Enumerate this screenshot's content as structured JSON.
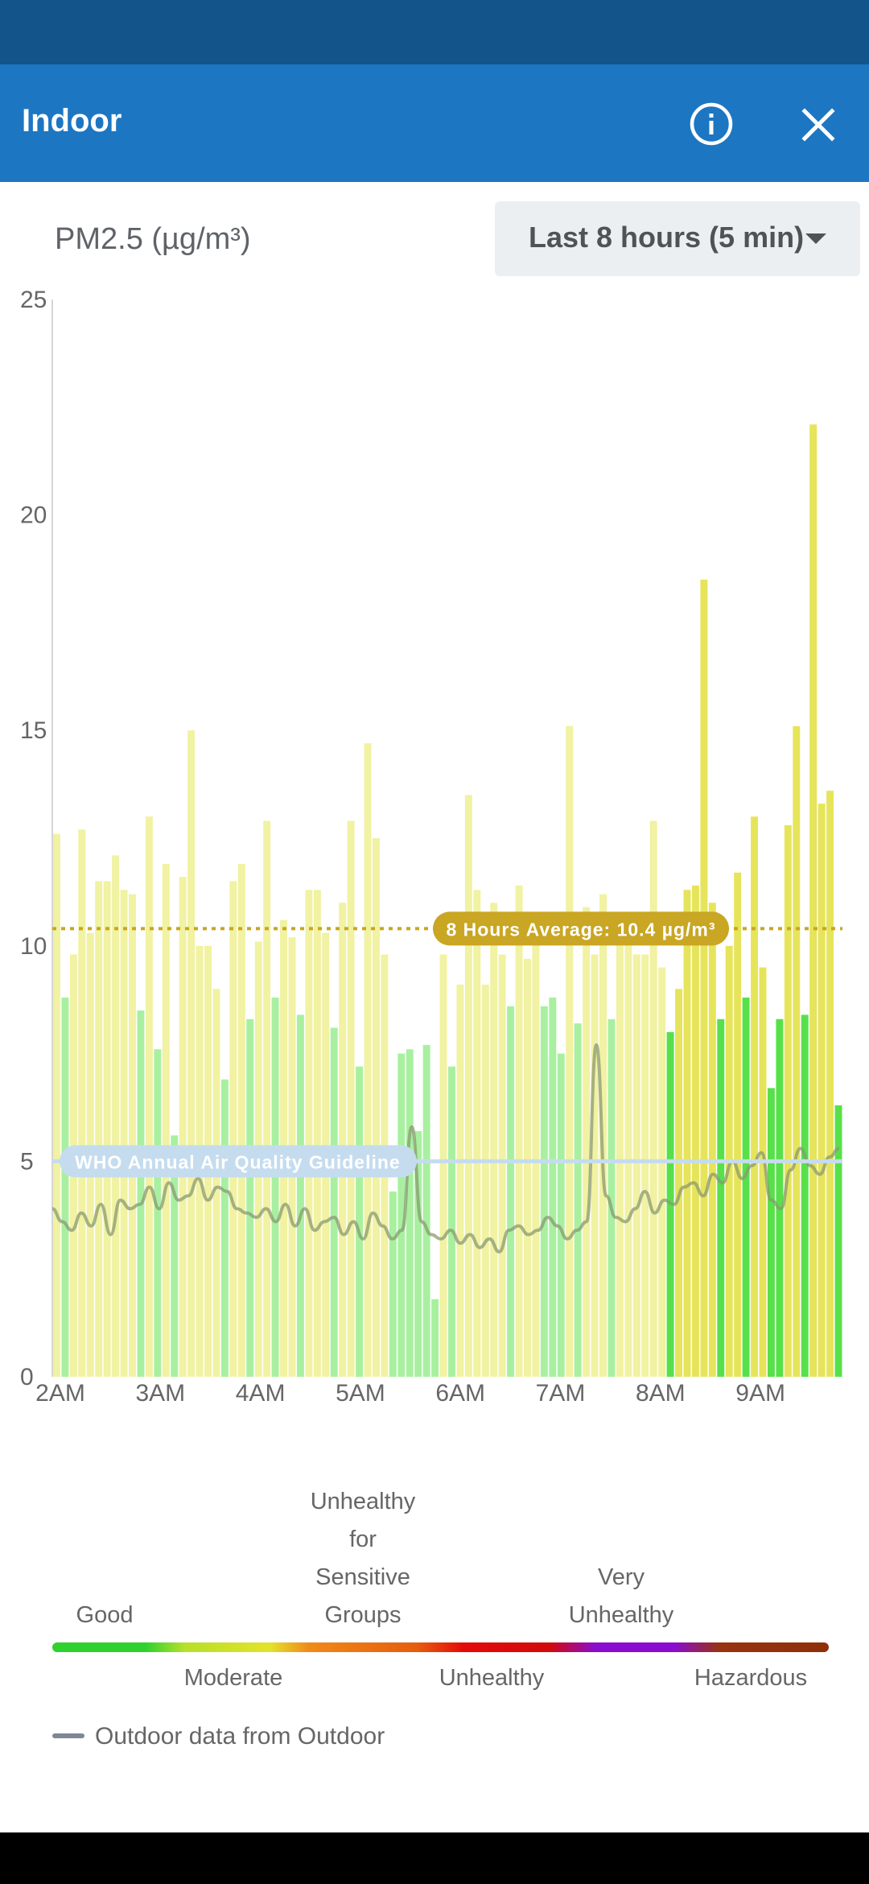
{
  "header": {
    "title": "Indoor"
  },
  "metric": {
    "label": "PM2.5 (µg/m³)"
  },
  "range_select": {
    "value": "Last 8 hours (5 min)"
  },
  "colors": {
    "header": "#1d76c2",
    "status_bar": "#13548b",
    "good": "#2ed12d",
    "moderate": "#e4e22b",
    "average_line": "#c9a623",
    "who_line": "#bcd7ee",
    "outdoor_line": "#7d8796"
  },
  "icons": {
    "info": "info-circle-icon",
    "close": "close-icon"
  },
  "chart_data": {
    "type": "bar",
    "yaxis_label": "PM2.5 (µg/m³)",
    "ylim": [
      0,
      25
    ],
    "yticks": [
      "0",
      "5",
      "10",
      "15",
      "20",
      "25"
    ],
    "xticks": [
      "2AM",
      "3AM",
      "4AM",
      "5AM",
      "6AM",
      "7AM",
      "8AM",
      "9AM"
    ],
    "xrange_hours": [
      2.0,
      9.9
    ],
    "indoor_values": [
      12.6,
      8.8,
      9.8,
      12.7,
      10.3,
      11.5,
      11.5,
      12.1,
      11.3,
      11.2,
      8.5,
      13.0,
      7.6,
      11.9,
      5.6,
      11.6,
      15.0,
      10.0,
      10.0,
      9.0,
      6.9,
      11.5,
      11.9,
      8.3,
      10.1,
      12.9,
      8.8,
      10.6,
      10.2,
      8.4,
      11.3,
      11.3,
      10.3,
      8.1,
      11.0,
      12.9,
      7.2,
      14.7,
      12.5,
      9.8,
      4.3,
      7.5,
      7.6,
      5.7,
      7.7,
      1.8,
      9.8,
      7.2,
      9.1,
      13.5,
      11.3,
      9.1,
      11.0,
      9.8,
      8.6,
      11.4,
      9.7,
      10.3,
      8.6,
      8.8,
      7.5,
      15.1,
      8.2,
      10.9,
      9.8,
      11.2,
      8.3,
      10.3,
      10.6,
      9.8,
      9.8,
      12.9,
      9.5,
      8.0,
      9.0,
      11.3,
      11.4,
      18.5,
      11.0,
      8.3,
      10.0,
      11.7,
      8.8,
      13.0,
      9.5,
      6.7,
      8.3,
      12.8,
      15.1,
      8.4,
      22.1,
      13.3,
      13.6,
      6.3
    ],
    "highlight_from_index": 73,
    "outdoor_values": [
      3.9,
      3.6,
      3.4,
      3.8,
      3.5,
      4.0,
      3.3,
      4.1,
      3.9,
      4.0,
      4.4,
      3.9,
      4.5,
      4.1,
      4.2,
      4.6,
      4.1,
      4.4,
      4.3,
      3.9,
      3.8,
      3.7,
      3.9,
      3.6,
      4.0,
      3.5,
      3.9,
      3.4,
      3.6,
      3.7,
      3.3,
      3.6,
      3.2,
      3.8,
      3.5,
      3.2,
      3.4,
      5.8,
      3.6,
      3.3,
      3.2,
      3.4,
      3.1,
      3.3,
      3.0,
      3.2,
      2.9,
      3.4,
      3.5,
      3.3,
      3.4,
      3.7,
      3.5,
      3.2,
      3.4,
      3.6,
      7.7,
      4.2,
      3.7,
      3.6,
      3.9,
      4.3,
      3.8,
      4.1,
      4.0,
      4.4,
      4.5,
      4.2,
      4.7,
      4.5,
      5.0,
      4.6,
      4.9,
      5.2,
      4.1,
      3.9,
      4.8,
      5.3,
      4.9,
      4.7,
      5.1,
      5.3
    ],
    "average": {
      "value": 10.4,
      "label": "8 Hours Average: 10.4 µg/m³"
    },
    "who_guideline": {
      "value": 5,
      "label": "WHO Annual Air Quality Guideline"
    }
  },
  "legend": {
    "top": [
      {
        "label": "Good",
        "lines": [
          "Good"
        ]
      },
      {
        "label": "Unhealthy for Sensitive Groups",
        "lines": [
          "Unhealthy",
          "for",
          "Sensitive",
          "Groups"
        ]
      },
      {
        "label": "Very Unhealthy",
        "lines": [
          "Very",
          "Unhealthy"
        ]
      }
    ],
    "bottom": [
      "Moderate",
      "Unhealthy",
      "Hazardous"
    ],
    "outdoor_text": "Outdoor data from Outdoor"
  }
}
